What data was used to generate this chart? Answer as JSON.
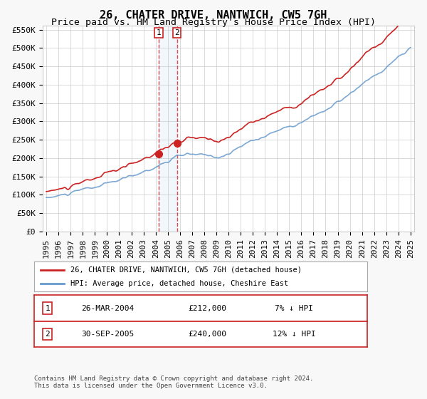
{
  "title": "26, CHATER DRIVE, NANTWICH, CW5 7GH",
  "subtitle": "Price paid vs. HM Land Registry's House Price Index (HPI)",
  "ylabel": "",
  "ylim": [
    0,
    560000
  ],
  "yticks": [
    0,
    50000,
    100000,
    150000,
    200000,
    250000,
    300000,
    350000,
    400000,
    450000,
    500000,
    550000
  ],
  "ytick_labels": [
    "£0",
    "£50K",
    "£100K",
    "£150K",
    "£200K",
    "£250K",
    "£300K",
    "£350K",
    "£400K",
    "£450K",
    "£500K",
    "£550K"
  ],
  "hpi_color": "#6699cc",
  "price_color": "#cc2222",
  "sale1_date": "2004-03-26",
  "sale1_price": 212000,
  "sale1_label": "1",
  "sale1_pct": "7% ↓ HPI",
  "sale2_date": "2005-09-30",
  "sale2_price": 240000,
  "sale2_label": "2",
  "sale2_pct": "12% ↓ HPI",
  "legend_line1": "26, CHATER DRIVE, NANTWICH, CW5 7GH (detached house)",
  "legend_line2": "HPI: Average price, detached house, Cheshire East",
  "footer1": "Contains HM Land Registry data © Crown copyright and database right 2024.",
  "footer2": "This data is licensed under the Open Government Licence v3.0.",
  "background_color": "#f8f8f8",
  "plot_bg_color": "#ffffff",
  "grid_color": "#cccccc",
  "title_fontsize": 11,
  "subtitle_fontsize": 9.5,
  "tick_fontsize": 8,
  "xstart": 1995,
  "xend": 2025
}
